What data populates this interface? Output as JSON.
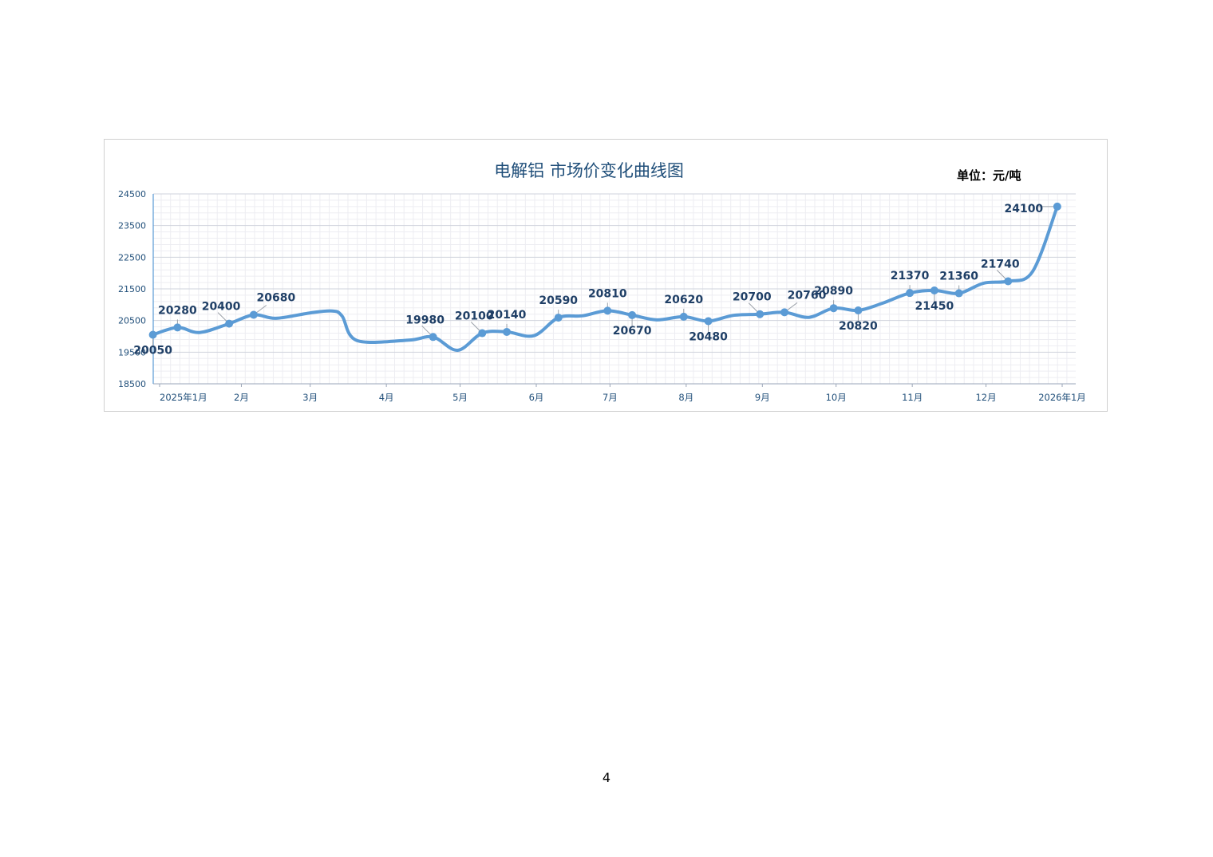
{
  "page": {
    "number": "4"
  },
  "chart_data": {
    "type": "line",
    "title": "电解铝 市场价变化曲线图",
    "unit_label": "单位：元/吨",
    "xlabel": "",
    "ylabel": "",
    "ylim": [
      18500,
      24500
    ],
    "yticks": [
      "24500",
      "23500",
      "22500",
      "21500",
      "20500",
      "19500",
      "18500"
    ],
    "x_axis": {
      "start": "2025-01-01",
      "end": "2026-01-01",
      "tick_labels": [
        {
          "date": "2025-01-01",
          "label": "2025年1月"
        },
        {
          "date": "2025-02-01",
          "label": "2月"
        },
        {
          "date": "2025-03-01",
          "label": "3月"
        },
        {
          "date": "2025-04-01",
          "label": "4月"
        },
        {
          "date": "2025-05-01",
          "label": "5月"
        },
        {
          "date": "2025-06-01",
          "label": "6月"
        },
        {
          "date": "2025-07-01",
          "label": "7月"
        },
        {
          "date": "2025-08-01",
          "label": "8月"
        },
        {
          "date": "2025-09-01",
          "label": "9月"
        },
        {
          "date": "2025-10-01",
          "label": "10月"
        },
        {
          "date": "2025-11-01",
          "label": "11月"
        },
        {
          "date": "2025-12-01",
          "label": "12月"
        },
        {
          "date": "2026-01-01",
          "label": "2026年1月"
        }
      ]
    },
    "grid": true,
    "line_color": "#5b9bd5",
    "label_color": "#1f3f66",
    "curve": [
      {
        "date": "2024-12-27",
        "value": 20050
      },
      {
        "date": "2025-01-06",
        "value": 20280
      },
      {
        "date": "2025-01-15",
        "value": 20120
      },
      {
        "date": "2025-01-27",
        "value": 20400
      },
      {
        "date": "2025-02-06",
        "value": 20680
      },
      {
        "date": "2025-02-15",
        "value": 20570
      },
      {
        "date": "2025-03-01",
        "value": 20740
      },
      {
        "date": "2025-03-10",
        "value": 20800
      },
      {
        "date": "2025-03-14",
        "value": 20640
      },
      {
        "date": "2025-03-20",
        "value": 19870
      },
      {
        "date": "2025-04-10",
        "value": 19880
      },
      {
        "date": "2025-04-20",
        "value": 19980
      },
      {
        "date": "2025-04-30",
        "value": 19560
      },
      {
        "date": "2025-05-10",
        "value": 20100
      },
      {
        "date": "2025-05-20",
        "value": 20140
      },
      {
        "date": "2025-05-31",
        "value": 20020
      },
      {
        "date": "2025-06-10",
        "value": 20590
      },
      {
        "date": "2025-06-20",
        "value": 20650
      },
      {
        "date": "2025-06-30",
        "value": 20810
      },
      {
        "date": "2025-07-10",
        "value": 20670
      },
      {
        "date": "2025-07-20",
        "value": 20520
      },
      {
        "date": "2025-07-31",
        "value": 20620
      },
      {
        "date": "2025-08-10",
        "value": 20480
      },
      {
        "date": "2025-08-20",
        "value": 20660
      },
      {
        "date": "2025-08-31",
        "value": 20700
      },
      {
        "date": "2025-09-10",
        "value": 20760
      },
      {
        "date": "2025-09-20",
        "value": 20600
      },
      {
        "date": "2025-09-30",
        "value": 20890
      },
      {
        "date": "2025-10-10",
        "value": 20820
      },
      {
        "date": "2025-10-20",
        "value": 21050
      },
      {
        "date": "2025-10-31",
        "value": 21370
      },
      {
        "date": "2025-11-10",
        "value": 21450
      },
      {
        "date": "2025-11-20",
        "value": 21360
      },
      {
        "date": "2025-11-30",
        "value": 21680
      },
      {
        "date": "2025-12-10",
        "value": 21740
      },
      {
        "date": "2025-12-20",
        "value": 22050
      },
      {
        "date": "2025-12-30",
        "value": 24100
      }
    ],
    "points": [
      {
        "date": "2024-12-27",
        "value": 20050,
        "label": "20050",
        "pos": "below"
      },
      {
        "date": "2025-01-06",
        "value": 20280,
        "label": "20280",
        "pos": "above"
      },
      {
        "date": "2025-01-27",
        "value": 20400,
        "label": "20400",
        "pos": "upper-left"
      },
      {
        "date": "2025-02-06",
        "value": 20680,
        "label": "20680",
        "pos": "upper-right"
      },
      {
        "date": "2025-04-20",
        "value": 19980,
        "label": "19980",
        "pos": "upper-left"
      },
      {
        "date": "2025-05-10",
        "value": 20100,
        "label": "20100",
        "pos": "upper-left"
      },
      {
        "date": "2025-05-20",
        "value": 20140,
        "label": "20140",
        "pos": "above"
      },
      {
        "date": "2025-06-10",
        "value": 20590,
        "label": "20590",
        "pos": "above"
      },
      {
        "date": "2025-06-30",
        "value": 20810,
        "label": "20810",
        "pos": "above"
      },
      {
        "date": "2025-07-10",
        "value": 20670,
        "label": "20670",
        "pos": "below"
      },
      {
        "date": "2025-07-31",
        "value": 20620,
        "label": "20620",
        "pos": "above"
      },
      {
        "date": "2025-08-10",
        "value": 20480,
        "label": "20480",
        "pos": "below"
      },
      {
        "date": "2025-08-31",
        "value": 20700,
        "label": "20700",
        "pos": "upper-left"
      },
      {
        "date": "2025-09-10",
        "value": 20760,
        "label": "20760",
        "pos": "upper-right"
      },
      {
        "date": "2025-09-30",
        "value": 20890,
        "label": "20890",
        "pos": "above"
      },
      {
        "date": "2025-10-10",
        "value": 20820,
        "label": "20820",
        "pos": "below"
      },
      {
        "date": "2025-10-31",
        "value": 21370,
        "label": "21370",
        "pos": "above"
      },
      {
        "date": "2025-11-10",
        "value": 21450,
        "label": "21450",
        "pos": "below"
      },
      {
        "date": "2025-11-20",
        "value": 21360,
        "label": "21360",
        "pos": "above"
      },
      {
        "date": "2025-12-10",
        "value": 21740,
        "label": "21740",
        "pos": "upper-left"
      },
      {
        "date": "2025-12-30",
        "value": 24100,
        "label": "24100",
        "pos": "left"
      }
    ]
  }
}
